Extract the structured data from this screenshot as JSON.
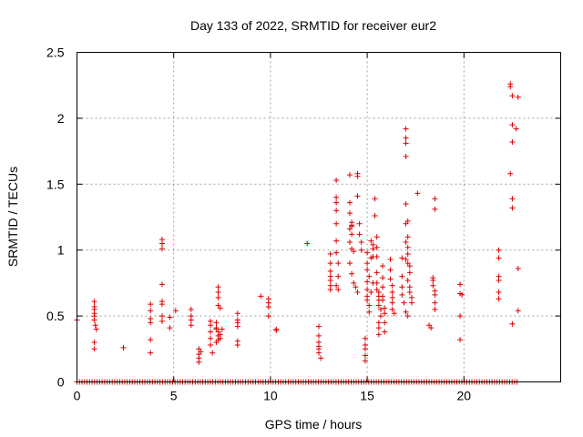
{
  "chart_data": {
    "type": "scatter",
    "title": "Day 133 of 2022, SRMTID for receiver eur2",
    "xlabel": "GPS time / hours",
    "ylabel": "SRMTID / TECUs",
    "xlim": [
      0,
      25
    ],
    "ylim": [
      0,
      2.5
    ],
    "xticks": [
      "0",
      "5",
      "10",
      "15",
      "20"
    ],
    "yticks": [
      "0",
      "0.5",
      "1",
      "1.5",
      "2",
      "2.5"
    ],
    "grid": true,
    "legend": "none",
    "marker": "plus",
    "color": "#e00000",
    "series": [
      {
        "name": "SRMTID",
        "points": [
          [
            0.0,
            0.47
          ],
          [
            0.9,
            0.61
          ],
          [
            0.9,
            0.57
          ],
          [
            0.9,
            0.55
          ],
          [
            0.9,
            0.52
          ],
          [
            0.9,
            0.5
          ],
          [
            0.9,
            0.47
          ],
          [
            0.95,
            0.43
          ],
          [
            1.0,
            0.4
          ],
          [
            0.9,
            0.3
          ],
          [
            0.9,
            0.25
          ],
          [
            2.4,
            0.26
          ],
          [
            3.8,
            0.59
          ],
          [
            3.8,
            0.54
          ],
          [
            3.8,
            0.48
          ],
          [
            3.8,
            0.45
          ],
          [
            3.8,
            0.32
          ],
          [
            3.8,
            0.22
          ],
          [
            4.4,
            1.08
          ],
          [
            4.4,
            1.05
          ],
          [
            4.4,
            1.01
          ],
          [
            4.4,
            0.74
          ],
          [
            4.4,
            0.61
          ],
          [
            4.4,
            0.59
          ],
          [
            4.4,
            0.5
          ],
          [
            4.4,
            0.46
          ],
          [
            4.8,
            0.49
          ],
          [
            4.8,
            0.41
          ],
          [
            5.1,
            0.54
          ],
          [
            5.9,
            0.55
          ],
          [
            5.9,
            0.5
          ],
          [
            5.9,
            0.47
          ],
          [
            5.9,
            0.43
          ],
          [
            6.3,
            0.25
          ],
          [
            6.3,
            0.21
          ],
          [
            6.3,
            0.18
          ],
          [
            6.3,
            0.15
          ],
          [
            6.4,
            0.23
          ],
          [
            6.9,
            0.46
          ],
          [
            6.9,
            0.43
          ],
          [
            6.9,
            0.38
          ],
          [
            6.9,
            0.33
          ],
          [
            6.9,
            0.28
          ],
          [
            7.0,
            0.22
          ],
          [
            7.2,
            0.45
          ],
          [
            7.2,
            0.4
          ],
          [
            7.3,
            0.35
          ],
          [
            7.3,
            0.38
          ],
          [
            7.3,
            0.32
          ],
          [
            7.4,
            0.36
          ],
          [
            7.4,
            0.33
          ],
          [
            7.2,
            0.3
          ],
          [
            7.3,
            0.72
          ],
          [
            7.3,
            0.68
          ],
          [
            7.3,
            0.64
          ],
          [
            7.3,
            0.58
          ],
          [
            7.4,
            0.56
          ],
          [
            7.2,
            0.41
          ],
          [
            7.5,
            0.4
          ],
          [
            8.3,
            0.52
          ],
          [
            8.3,
            0.47
          ],
          [
            8.3,
            0.45
          ],
          [
            8.3,
            0.42
          ],
          [
            8.3,
            0.31
          ],
          [
            8.3,
            0.28
          ],
          [
            9.5,
            0.65
          ],
          [
            9.9,
            0.63
          ],
          [
            9.9,
            0.6
          ],
          [
            9.9,
            0.57
          ],
          [
            9.9,
            0.5
          ],
          [
            10.3,
            0.4
          ],
          [
            10.3,
            0.39
          ],
          [
            11.9,
            1.05
          ],
          [
            12.5,
            0.42
          ],
          [
            12.5,
            0.35
          ],
          [
            12.5,
            0.3
          ],
          [
            12.5,
            0.27
          ],
          [
            12.5,
            0.25
          ],
          [
            12.5,
            0.22
          ],
          [
            12.6,
            0.18
          ],
          [
            13.1,
            0.97
          ],
          [
            13.1,
            0.9
          ],
          [
            13.1,
            0.84
          ],
          [
            13.1,
            0.8
          ],
          [
            13.1,
            0.77
          ],
          [
            13.1,
            0.73
          ],
          [
            13.1,
            0.7
          ],
          [
            13.4,
            1.53
          ],
          [
            13.4,
            1.4
          ],
          [
            13.4,
            1.36
          ],
          [
            13.4,
            1.3
          ],
          [
            13.4,
            1.2
          ],
          [
            13.4,
            1.07
          ],
          [
            13.4,
            0.98
          ],
          [
            13.5,
            0.9
          ],
          [
            13.5,
            0.8
          ],
          [
            13.4,
            0.73
          ],
          [
            13.5,
            0.7
          ],
          [
            14.1,
            1.57
          ],
          [
            14.1,
            1.36
          ],
          [
            14.1,
            1.28
          ],
          [
            14.2,
            1.21
          ],
          [
            14.2,
            1.19
          ],
          [
            14.2,
            1.18
          ],
          [
            14.1,
            1.16
          ],
          [
            14.2,
            1.12
          ],
          [
            14.1,
            1.06
          ],
          [
            14.2,
            1.01
          ],
          [
            14.3,
            0.99
          ],
          [
            14.1,
            0.9
          ],
          [
            14.2,
            0.82
          ],
          [
            14.3,
            0.75
          ],
          [
            14.4,
            0.72
          ],
          [
            14.5,
            0.68
          ],
          [
            14.5,
            1.58
          ],
          [
            14.5,
            1.56
          ],
          [
            14.5,
            1.41
          ],
          [
            14.6,
            1.2
          ],
          [
            14.6,
            1.12
          ],
          [
            14.7,
            1.06
          ],
          [
            14.7,
            1.0
          ],
          [
            14.9,
            0.33
          ],
          [
            14.9,
            0.28
          ],
          [
            14.9,
            0.25
          ],
          [
            14.9,
            0.2
          ],
          [
            14.9,
            0.16
          ],
          [
            15.0,
            0.98
          ],
          [
            15.0,
            0.9
          ],
          [
            15.0,
            0.85
          ],
          [
            15.0,
            0.76
          ],
          [
            15.0,
            0.7
          ],
          [
            15.0,
            0.65
          ],
          [
            15.0,
            0.62
          ],
          [
            15.1,
            0.8
          ],
          [
            15.2,
            0.94
          ],
          [
            15.2,
            1.07
          ],
          [
            15.3,
            1.04
          ],
          [
            15.3,
            1.01
          ],
          [
            15.3,
            0.95
          ],
          [
            15.3,
            0.75
          ],
          [
            15.2,
            0.68
          ],
          [
            15.1,
            0.58
          ],
          [
            15.1,
            0.53
          ],
          [
            15.4,
            1.39
          ],
          [
            15.4,
            1.26
          ],
          [
            15.5,
            1.1
          ],
          [
            15.5,
            1.02
          ],
          [
            15.5,
            0.95
          ],
          [
            15.5,
            0.83
          ],
          [
            15.5,
            0.75
          ],
          [
            15.5,
            0.7
          ],
          [
            15.6,
            0.68
          ],
          [
            15.6,
            0.65
          ],
          [
            15.6,
            0.62
          ],
          [
            15.6,
            0.58
          ],
          [
            15.7,
            0.55
          ],
          [
            15.7,
            0.5
          ],
          [
            15.6,
            0.45
          ],
          [
            15.6,
            0.41
          ],
          [
            15.6,
            0.36
          ],
          [
            15.8,
            0.88
          ],
          [
            15.8,
            0.79
          ],
          [
            15.8,
            0.72
          ],
          [
            15.8,
            0.65
          ],
          [
            15.8,
            0.62
          ],
          [
            15.9,
            0.56
          ],
          [
            15.9,
            0.52
          ],
          [
            15.9,
            0.45
          ],
          [
            15.9,
            0.38
          ],
          [
            16.2,
            0.93
          ],
          [
            16.2,
            0.85
          ],
          [
            16.2,
            0.78
          ],
          [
            16.3,
            0.73
          ],
          [
            16.3,
            0.68
          ],
          [
            16.3,
            0.64
          ],
          [
            16.3,
            0.6
          ],
          [
            16.3,
            0.55
          ],
          [
            16.4,
            0.52
          ],
          [
            16.8,
            0.94
          ],
          [
            16.8,
            0.8
          ],
          [
            16.8,
            0.72
          ],
          [
            16.8,
            0.66
          ],
          [
            16.9,
            0.6
          ],
          [
            17.0,
            1.92
          ],
          [
            17.0,
            1.85
          ],
          [
            17.0,
            1.81
          ],
          [
            17.0,
            1.71
          ],
          [
            17.0,
            1.35
          ],
          [
            17.1,
            1.22
          ],
          [
            17.0,
            1.2
          ],
          [
            17.1,
            1.1
          ],
          [
            17.0,
            1.06
          ],
          [
            17.1,
            1.02
          ],
          [
            17.1,
            0.97
          ],
          [
            17.0,
            0.93
          ],
          [
            17.1,
            0.9
          ],
          [
            17.2,
            0.88
          ],
          [
            17.2,
            0.83
          ],
          [
            17.1,
            0.77
          ],
          [
            17.2,
            0.72
          ],
          [
            17.2,
            0.68
          ],
          [
            17.3,
            0.64
          ],
          [
            17.3,
            0.6
          ],
          [
            17.0,
            0.53
          ],
          [
            17.1,
            0.5
          ],
          [
            17.6,
            1.43
          ],
          [
            18.2,
            0.43
          ],
          [
            18.3,
            0.41
          ],
          [
            18.4,
            0.79
          ],
          [
            18.4,
            0.77
          ],
          [
            18.4,
            0.73
          ],
          [
            18.5,
            0.69
          ],
          [
            18.5,
            0.66
          ],
          [
            18.5,
            1.39
          ],
          [
            18.5,
            1.31
          ],
          [
            18.5,
            0.6
          ],
          [
            18.5,
            0.55
          ],
          [
            19.8,
            0.74
          ],
          [
            19.8,
            0.67
          ],
          [
            19.9,
            0.66
          ],
          [
            19.8,
            0.5
          ],
          [
            19.8,
            0.32
          ],
          [
            21.8,
            1.0
          ],
          [
            21.8,
            0.94
          ],
          [
            21.8,
            0.8
          ],
          [
            21.8,
            0.77
          ],
          [
            21.8,
            0.68
          ],
          [
            21.8,
            0.63
          ],
          [
            22.4,
            2.26
          ],
          [
            22.4,
            2.24
          ],
          [
            22.5,
            2.17
          ],
          [
            22.5,
            1.95
          ],
          [
            22.5,
            1.82
          ],
          [
            22.4,
            1.58
          ],
          [
            22.5,
            1.39
          ],
          [
            22.5,
            1.32
          ],
          [
            22.5,
            0.44
          ],
          [
            22.7,
            1.92
          ],
          [
            22.8,
            2.16
          ],
          [
            22.8,
            0.86
          ],
          [
            22.8,
            0.54
          ]
        ]
      }
    ]
  }
}
